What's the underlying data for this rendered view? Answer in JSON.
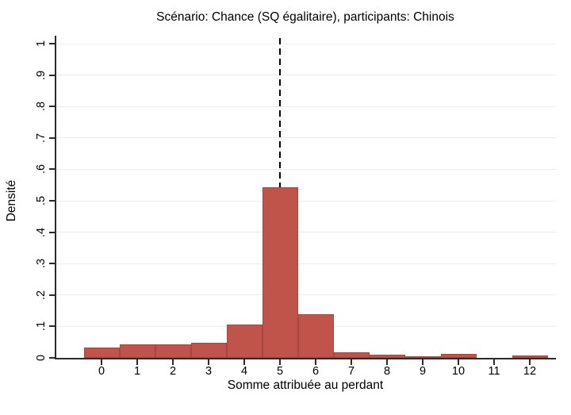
{
  "chart_data": {
    "type": "bar",
    "subtype": "histogram",
    "title": "Scénario: Chance (SQ égalitaire), participants: Chinois",
    "xlabel": "Somme attribuée au perdant",
    "ylabel": "Densité",
    "categories": [
      0,
      1,
      2,
      3,
      4,
      5,
      6,
      7,
      8,
      9,
      10,
      11,
      12
    ],
    "values": [
      0.033,
      0.042,
      0.042,
      0.048,
      0.105,
      0.542,
      0.138,
      0.018,
      0.01,
      0.005,
      0.012,
      0,
      0.007
    ],
    "bar_width": 1,
    "xtick_labels": [
      "0",
      "1",
      "2",
      "3",
      "4",
      "5",
      "6",
      "7",
      "8",
      "9",
      "10",
      "11",
      "12"
    ],
    "yticks": [
      0,
      0.1,
      0.2,
      0.3,
      0.4,
      0.5,
      0.6,
      0.7,
      0.8,
      0.9,
      1
    ],
    "ytick_labels": [
      "0",
      ".1",
      ".2",
      ".3",
      ".4",
      ".5",
      ".6",
      ".7",
      ".8",
      ".9",
      "1"
    ],
    "ylim": [
      0,
      1
    ],
    "xlim": [
      -1.35,
      12.7
    ],
    "reference_line_x": 5,
    "reference_line_style": "dashed",
    "grid": true,
    "legend": "none",
    "colors": {
      "bar_fill": "#c0544a",
      "bar_border": "#a6473e",
      "grid_line": "#e9eef1",
      "axis": "#2b2b2b",
      "reference_line": "#000000",
      "background": "#ffffff",
      "text": "#000000"
    }
  }
}
